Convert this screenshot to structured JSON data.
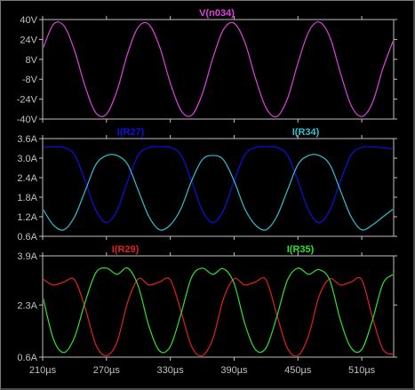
{
  "window": {
    "background": "#000000",
    "axis_color": "#c0c0c0",
    "label_color": "#c0c0c0"
  },
  "chart_data": [
    {
      "type": "line",
      "pane": "top",
      "xlabel": "",
      "ylabel": "",
      "xlim": [
        210,
        540
      ],
      "ylim": [
        -40,
        40
      ],
      "ytick_values": [
        40,
        24,
        8,
        -8,
        -24,
        -40
      ],
      "yticks": [
        "40V",
        "24V",
        "8V",
        "-8V",
        "-24V",
        "-40V"
      ],
      "grid": false,
      "series": [
        {
          "name": "V(n034)",
          "color": "#e040e0",
          "x": [
            210,
            220,
            230,
            240,
            250,
            260,
            270,
            280,
            290,
            300,
            310,
            320,
            330,
            340,
            350,
            360,
            370,
            380,
            390,
            400,
            410,
            420,
            430,
            440,
            450,
            460,
            470,
            480,
            490,
            500,
            510,
            520,
            530,
            540
          ],
          "y": [
            16,
            36,
            35,
            15,
            -14,
            -35,
            -36,
            -17,
            13,
            34,
            36,
            18,
            -11,
            -33,
            -37,
            -20,
            9,
            32,
            37,
            22,
            -7,
            -31,
            -38,
            -24,
            5,
            30,
            38,
            26,
            -3,
            -29,
            -38,
            -27,
            1,
            24
          ]
        }
      ]
    },
    {
      "type": "line",
      "pane": "middle",
      "xlabel": "",
      "ylabel": "",
      "xlim": [
        210,
        540
      ],
      "ylim": [
        0.6,
        3.6
      ],
      "ytick_values": [
        3.6,
        3.0,
        2.4,
        1.8,
        1.2,
        0.6
      ],
      "yticks": [
        "3.6A",
        "3.0A",
        "2.4A",
        "1.8A",
        "1.2A",
        "0.6A"
      ],
      "grid": false,
      "series": [
        {
          "name": "I(R27)",
          "color": "#1010e0",
          "x": [
            210,
            220,
            230,
            240,
            250,
            260,
            270,
            280,
            290,
            300,
            310,
            320,
            330,
            340,
            350,
            360,
            370,
            380,
            390,
            400,
            410,
            420,
            430,
            440,
            450,
            460,
            470,
            480,
            490,
            500,
            510,
            520,
            530,
            540
          ],
          "y": [
            3.33,
            3.35,
            3.33,
            3.1,
            2.3,
            1.4,
            1.02,
            1.4,
            2.3,
            3.1,
            3.33,
            3.35,
            3.33,
            3.1,
            2.3,
            1.4,
            1.02,
            1.4,
            2.3,
            3.1,
            3.33,
            3.35,
            3.33,
            3.1,
            2.3,
            1.4,
            1.02,
            1.4,
            2.3,
            3.1,
            3.33,
            3.35,
            3.32,
            3.28
          ]
        },
        {
          "name": "I(R34)",
          "color": "#30c0d0",
          "x": [
            210,
            220,
            230,
            240,
            250,
            260,
            270,
            280,
            290,
            300,
            310,
            320,
            330,
            340,
            350,
            360,
            370,
            380,
            390,
            400,
            410,
            420,
            430,
            440,
            450,
            460,
            470,
            480,
            490,
            500,
            510,
            520,
            530,
            540
          ],
          "y": [
            1.45,
            0.95,
            0.8,
            1.2,
            2.0,
            2.8,
            3.08,
            3.08,
            2.8,
            2.0,
            1.2,
            0.8,
            0.95,
            1.45,
            2.3,
            2.95,
            3.08,
            2.95,
            2.3,
            1.45,
            0.95,
            0.8,
            1.2,
            2.0,
            2.8,
            3.08,
            3.08,
            2.8,
            2.0,
            1.2,
            0.8,
            0.95,
            1.2,
            1.45
          ]
        }
      ]
    },
    {
      "type": "line",
      "pane": "bottom",
      "xlabel": "",
      "ylabel": "",
      "xlim": [
        210,
        540
      ],
      "ylim": [
        0.6,
        3.9
      ],
      "ytick_values": [
        3.9,
        2.3,
        0.6
      ],
      "yticks": [
        "3.9A",
        "2.3A",
        "0.6A"
      ],
      "xticks": [
        "210µs",
        "270µs",
        "330µs",
        "390µs",
        "450µs",
        "510µs"
      ],
      "xtick_values": [
        210,
        270,
        330,
        390,
        450,
        510
      ],
      "grid": false,
      "series": [
        {
          "name": "I(R29)",
          "color": "#e02020",
          "x": [
            210,
            220,
            230,
            240,
            250,
            260,
            270,
            280,
            290,
            300,
            310,
            320,
            330,
            340,
            350,
            360,
            370,
            380,
            390,
            400,
            410,
            420,
            430,
            440,
            450,
            460,
            470,
            480,
            490,
            500,
            510,
            520,
            530,
            540
          ],
          "y": [
            3.15,
            2.95,
            3.05,
            3.12,
            2.2,
            1.0,
            0.65,
            1.1,
            2.4,
            3.15,
            2.95,
            3.05,
            3.12,
            2.1,
            0.95,
            0.65,
            1.2,
            2.5,
            3.15,
            2.95,
            3.05,
            3.12,
            2.0,
            0.9,
            0.65,
            1.3,
            2.6,
            3.15,
            2.95,
            3.05,
            3.12,
            1.9,
            0.85,
            0.7
          ]
        },
        {
          "name": "I(R35)",
          "color": "#30e030",
          "x": [
            210,
            220,
            230,
            240,
            250,
            260,
            270,
            280,
            290,
            300,
            310,
            320,
            330,
            340,
            350,
            360,
            370,
            380,
            390,
            400,
            410,
            420,
            430,
            440,
            450,
            460,
            470,
            480,
            490,
            500,
            510,
            520,
            530,
            540
          ],
          "y": [
            2.6,
            1.2,
            0.75,
            1.25,
            2.4,
            3.35,
            3.5,
            3.3,
            3.5,
            2.9,
            1.6,
            0.8,
            0.95,
            2.0,
            3.2,
            3.5,
            3.3,
            3.48,
            3.0,
            1.7,
            0.85,
            0.9,
            1.9,
            3.1,
            3.5,
            3.3,
            3.45,
            3.1,
            1.8,
            0.9,
            0.85,
            1.8,
            3.0,
            3.3
          ]
        }
      ]
    }
  ]
}
